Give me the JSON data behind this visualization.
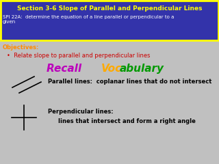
{
  "title": "Section 3-6 Slope of Parallel and Perpendicular Lines",
  "subtitle": "SPI 22A:  determine the equation of a line parallel or perpendicular to a\ngiven",
  "header_bg": "#3333AA",
  "header_text_color": "#FFFFFF",
  "header_title_color": "#FFFF00",
  "border_color": "#FFFF00",
  "bg_color": "#C0C0C0",
  "obj_label": "Objectives:",
  "obj_label_color": "#FF8C00",
  "obj_bullet": "Relate slope to parallel and perpendicular lines",
  "obj_bullet_color": "#CC0000",
  "recall_recall": "Recall ",
  "recall_voc": "Voc",
  "recall_abulary": "abulary",
  "recall_recall_color": "#BB00BB",
  "recall_voc_color": "#FFAA00",
  "recall_abulary_color": "#009900",
  "parallel_text": "Parallel lines:  coplanar lines that do not intersect",
  "parallel_text_color": "#000000",
  "perp_text1": "Perpendicular lines:",
  "perp_text2": "lines that intersect and form a right angle",
  "perp_text_color": "#000000",
  "header_fontsize": 6.5,
  "subtitle_fontsize": 5.0,
  "obj_fontsize": 6.0,
  "recall_fontsize": 11,
  "body_fontsize": 6.0
}
